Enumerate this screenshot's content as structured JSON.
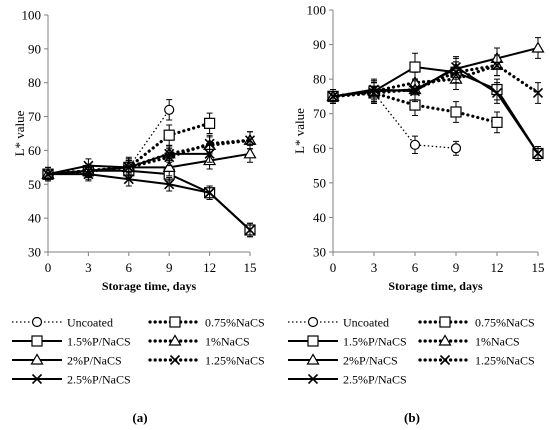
{
  "chart_data": [
    {
      "type": "line",
      "panel_label": "(a)",
      "xlabel": "Storage time, days",
      "ylabel": "L* value",
      "x": [
        0,
        3,
        6,
        9,
        12,
        15
      ],
      "xlim": [
        0,
        15
      ],
      "ylim": [
        30,
        100
      ],
      "yticks": [
        30,
        40,
        50,
        60,
        70,
        80,
        90,
        100
      ],
      "grid": false,
      "legend_position": "bottom",
      "series": [
        {
          "name": "Uncoated",
          "values": [
            53,
            53.5,
            55,
            72,
            null,
            null
          ],
          "errors": [
            2,
            2,
            3,
            3,
            null,
            null
          ],
          "line": "dotted-thin",
          "marker": "circle"
        },
        {
          "name": "0.75%NaCS",
          "values": [
            53,
            54,
            55,
            64.5,
            68,
            null
          ],
          "errors": [
            2,
            2,
            2.5,
            3,
            3,
            null
          ],
          "line": "dotted-thick",
          "marker": "square"
        },
        {
          "name": "1.5%P/NaCS",
          "values": [
            53,
            54,
            54,
            53,
            47.5,
            36.5
          ],
          "errors": [
            1.5,
            2,
            2,
            2,
            2,
            2
          ],
          "line": "solid",
          "marker": "square"
        },
        {
          "name": "1%NaCS",
          "values": [
            53,
            54,
            55,
            59,
            61.5,
            63
          ],
          "errors": [
            1.5,
            2,
            2,
            2,
            2.5,
            2.5
          ],
          "line": "dotted-thick",
          "marker": "triangle"
        },
        {
          "name": "2%P/NaCS",
          "values": [
            53,
            54,
            55,
            55,
            57,
            59
          ],
          "errors": [
            1.5,
            2,
            2,
            2.5,
            2.5,
            2.5
          ],
          "line": "solid",
          "marker": "triangle"
        },
        {
          "name": "1.25%NaCS",
          "values": [
            53,
            54,
            55,
            58,
            62,
            63
          ],
          "errors": [
            1.5,
            2,
            2,
            2.5,
            2.5,
            2.5
          ],
          "line": "dotted-thick",
          "marker": "x"
        },
        {
          "name": "2.5%P/NaCS",
          "values": [
            53,
            55.5,
            55,
            59,
            59,
            null
          ],
          "errors": [
            1.5,
            2,
            2.5,
            2.5,
            2.5,
            null
          ],
          "line": "solid",
          "marker": "x"
        },
        {
          "name": "",
          "values": [
            53,
            53,
            51.5,
            50,
            47.5,
            36.5
          ],
          "errors": [
            1.5,
            2,
            2,
            2,
            2,
            2
          ],
          "line": "solid",
          "marker": "x",
          "legend": false
        }
      ]
    },
    {
      "type": "line",
      "panel_label": "(b)",
      "xlabel": "Storage time, days",
      "ylabel": "L* value",
      "x": [
        0,
        3,
        6,
        9,
        12,
        15
      ],
      "xlim": [
        0,
        15
      ],
      "ylim": [
        30,
        100
      ],
      "yticks": [
        30,
        40,
        50,
        60,
        70,
        80,
        90,
        100
      ],
      "grid": false,
      "legend_position": "bottom",
      "series": [
        {
          "name": "Uncoated",
          "values": [
            75,
            76,
            61,
            60,
            null,
            null
          ],
          "errors": [
            2,
            3,
            2.5,
            2,
            null,
            null
          ],
          "line": "dotted-thin",
          "marker": "circle"
        },
        {
          "name": "0.75%NaCS",
          "values": [
            75,
            76,
            72.5,
            70.5,
            67.5,
            null
          ],
          "errors": [
            2,
            3,
            3,
            3,
            3,
            null
          ],
          "line": "dotted-thick",
          "marker": "square"
        },
        {
          "name": "1.5%P/NaCS",
          "values": [
            75,
            76.5,
            83.5,
            82,
            77,
            58.5
          ],
          "errors": [
            2,
            3,
            4,
            3,
            3,
            2
          ],
          "line": "solid",
          "marker": "square"
        },
        {
          "name": "1%NaCS",
          "values": [
            75,
            76.5,
            79,
            80,
            84,
            null
          ],
          "errors": [
            2,
            3,
            3,
            3,
            3,
            null
          ],
          "line": "dotted-thick",
          "marker": "triangle"
        },
        {
          "name": "2%P/NaCS",
          "values": [
            75,
            76.5,
            77,
            83,
            86,
            89
          ],
          "errors": [
            2,
            3,
            3,
            3,
            3,
            3
          ],
          "line": "solid",
          "marker": "triangle"
        },
        {
          "name": "1.25%NaCS",
          "values": [
            75,
            76,
            77,
            82,
            84,
            76
          ],
          "errors": [
            2,
            3,
            3,
            3,
            3,
            3
          ],
          "line": "dotted-thick",
          "marker": "x"
        },
        {
          "name": "2.5%P/NaCS",
          "values": [
            75,
            77,
            76.5,
            83.5,
            76,
            58.5
          ],
          "errors": [
            2,
            3,
            3,
            3,
            3,
            2
          ],
          "line": "solid",
          "marker": "x"
        }
      ]
    }
  ]
}
